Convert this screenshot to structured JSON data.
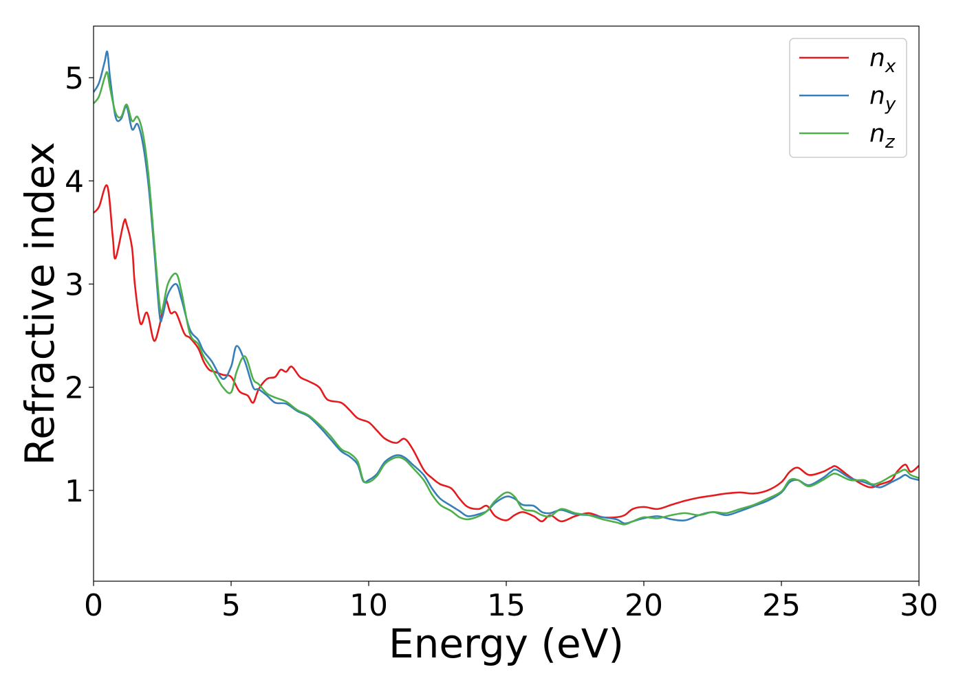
{
  "chart_data": {
    "type": "line",
    "xlabel": "Energy (eV)",
    "ylabel": "Refractive index",
    "xlim": [
      0,
      30
    ],
    "ylim": [
      0.12,
      5.5
    ],
    "xticks": [
      0,
      5,
      10,
      15,
      20,
      25,
      30
    ],
    "yticks": [
      1,
      2,
      3,
      4,
      5
    ],
    "grid": false,
    "legend_position": "top-right",
    "series": [
      {
        "name": "n_x",
        "label_base": "n",
        "label_sub": "x",
        "color": "#e41a1c",
        "x": [
          0,
          0.2,
          0.5,
          0.7,
          0.8,
          1.1,
          1.2,
          1.4,
          1.5,
          1.7,
          1.9,
          2.0,
          2.2,
          2.4,
          2.6,
          2.8,
          3.0,
          3.3,
          3.5,
          3.8,
          4.0,
          4.2,
          4.4,
          4.7,
          5.0,
          5.3,
          5.6,
          5.8,
          6.0,
          6.3,
          6.6,
          6.8,
          7.0,
          7.2,
          7.5,
          7.8,
          8.2,
          8.5,
          9.0,
          9.3,
          9.6,
          10.0,
          10.3,
          10.6,
          11.0,
          11.3,
          11.6,
          12.0,
          12.3,
          12.6,
          13.0,
          13.3,
          13.6,
          14.0,
          14.3,
          14.6,
          15.0,
          15.3,
          15.6,
          16.0,
          16.3,
          16.6,
          17.0,
          17.5,
          18.0,
          18.5,
          19.0,
          19.3,
          19.6,
          20.0,
          20.5,
          21.0,
          21.5,
          22.0,
          22.5,
          23.0,
          23.5,
          24.0,
          24.5,
          25.0,
          25.3,
          25.6,
          26.0,
          26.5,
          26.8,
          27.0,
          27.5,
          28.0,
          28.3,
          28.6,
          29.0,
          29.2,
          29.5,
          29.7,
          30.0
        ],
        "values": [
          3.69,
          3.75,
          3.95,
          3.45,
          3.25,
          3.6,
          3.58,
          3.35,
          3.0,
          2.62,
          2.72,
          2.68,
          2.45,
          2.6,
          2.85,
          2.72,
          2.72,
          2.52,
          2.48,
          2.38,
          2.25,
          2.17,
          2.15,
          2.12,
          2.1,
          1.96,
          1.92,
          1.85,
          1.98,
          2.08,
          2.1,
          2.17,
          2.15,
          2.2,
          2.1,
          2.06,
          2.0,
          1.88,
          1.85,
          1.78,
          1.7,
          1.66,
          1.58,
          1.5,
          1.46,
          1.5,
          1.4,
          1.2,
          1.12,
          1.06,
          1.02,
          0.92,
          0.84,
          0.82,
          0.85,
          0.75,
          0.71,
          0.76,
          0.79,
          0.75,
          0.7,
          0.76,
          0.7,
          0.75,
          0.78,
          0.74,
          0.74,
          0.76,
          0.82,
          0.84,
          0.82,
          0.86,
          0.9,
          0.93,
          0.95,
          0.97,
          0.98,
          0.97,
          1.0,
          1.08,
          1.18,
          1.22,
          1.15,
          1.18,
          1.22,
          1.23,
          1.13,
          1.05,
          1.03,
          1.06,
          1.1,
          1.18,
          1.25,
          1.18,
          1.24
        ]
      },
      {
        "name": "n_y",
        "label_base": "n",
        "label_sub": "y",
        "color": "#377eb8",
        "x": [
          0,
          0.2,
          0.4,
          0.5,
          0.6,
          0.8,
          1.0,
          1.2,
          1.4,
          1.6,
          1.8,
          2.0,
          2.2,
          2.4,
          2.5,
          2.7,
          3.0,
          3.2,
          3.5,
          3.8,
          4.0,
          4.3,
          4.7,
          5.0,
          5.2,
          5.5,
          5.8,
          6.0,
          6.3,
          6.6,
          7.0,
          7.4,
          7.8,
          8.2,
          8.6,
          9.0,
          9.3,
          9.6,
          9.8,
          10.0,
          10.3,
          10.6,
          11.0,
          11.3,
          11.6,
          12.0,
          12.3,
          12.6,
          13.0,
          13.3,
          13.6,
          14.0,
          14.3,
          14.6,
          15.0,
          15.3,
          15.6,
          16.0,
          16.3,
          16.6,
          17.0,
          17.5,
          18.0,
          18.5,
          19.0,
          19.3,
          19.6,
          20.0,
          20.5,
          21.0,
          21.5,
          22.0,
          22.5,
          23.0,
          23.5,
          24.0,
          24.5,
          25.0,
          25.3,
          25.6,
          26.0,
          26.5,
          26.8,
          27.0,
          27.5,
          28.0,
          28.3,
          28.6,
          29.0,
          29.3,
          29.5,
          29.7,
          30.0
        ],
        "values": [
          4.86,
          4.95,
          5.15,
          5.25,
          5.0,
          4.62,
          4.6,
          4.72,
          4.5,
          4.55,
          4.35,
          3.95,
          3.35,
          2.7,
          2.68,
          2.9,
          3.0,
          2.85,
          2.56,
          2.46,
          2.35,
          2.25,
          2.08,
          2.2,
          2.4,
          2.25,
          2.0,
          1.98,
          1.92,
          1.85,
          1.84,
          1.77,
          1.72,
          1.62,
          1.5,
          1.38,
          1.33,
          1.25,
          1.09,
          1.1,
          1.16,
          1.28,
          1.34,
          1.32,
          1.25,
          1.15,
          1.02,
          0.92,
          0.85,
          0.8,
          0.75,
          0.77,
          0.8,
          0.88,
          0.94,
          0.92,
          0.86,
          0.85,
          0.79,
          0.78,
          0.81,
          0.77,
          0.76,
          0.74,
          0.72,
          0.68,
          0.7,
          0.73,
          0.75,
          0.72,
          0.71,
          0.76,
          0.79,
          0.76,
          0.8,
          0.85,
          0.9,
          0.98,
          1.08,
          1.1,
          1.05,
          1.12,
          1.18,
          1.2,
          1.12,
          1.08,
          1.05,
          1.03,
          1.08,
          1.12,
          1.15,
          1.12,
          1.1
        ]
      },
      {
        "name": "n_z",
        "label_base": "n",
        "label_sub": "z",
        "color": "#4daf4a",
        "x": [
          0,
          0.2,
          0.4,
          0.5,
          0.6,
          0.8,
          1.0,
          1.2,
          1.4,
          1.6,
          1.8,
          2.0,
          2.2,
          2.4,
          2.5,
          2.7,
          3.0,
          3.2,
          3.5,
          3.8,
          4.0,
          4.3,
          4.7,
          5.0,
          5.2,
          5.5,
          5.8,
          6.0,
          6.3,
          6.6,
          7.0,
          7.4,
          7.8,
          8.2,
          8.6,
          9.0,
          9.3,
          9.6,
          9.8,
          10.0,
          10.3,
          10.6,
          11.0,
          11.3,
          11.6,
          12.0,
          12.3,
          12.6,
          13.0,
          13.3,
          13.6,
          14.0,
          14.3,
          14.6,
          15.0,
          15.3,
          15.6,
          16.0,
          16.3,
          16.6,
          17.0,
          17.5,
          18.0,
          18.5,
          19.0,
          19.3,
          19.6,
          20.0,
          20.5,
          21.0,
          21.5,
          22.0,
          22.5,
          23.0,
          23.5,
          24.0,
          24.5,
          25.0,
          25.3,
          25.6,
          26.0,
          26.5,
          26.8,
          27.0,
          27.5,
          28.0,
          28.3,
          28.6,
          29.0,
          29.3,
          29.5,
          29.7,
          30.0
        ],
        "values": [
          4.75,
          4.82,
          5.0,
          5.05,
          4.9,
          4.66,
          4.62,
          4.74,
          4.58,
          4.62,
          4.45,
          4.05,
          3.42,
          2.8,
          2.75,
          3.0,
          3.1,
          2.92,
          2.52,
          2.42,
          2.3,
          2.18,
          2.0,
          1.95,
          2.15,
          2.3,
          2.08,
          2.03,
          1.94,
          1.9,
          1.86,
          1.78,
          1.73,
          1.64,
          1.53,
          1.4,
          1.36,
          1.28,
          1.1,
          1.08,
          1.14,
          1.26,
          1.32,
          1.3,
          1.22,
          1.1,
          0.96,
          0.86,
          0.8,
          0.74,
          0.72,
          0.75,
          0.8,
          0.9,
          0.98,
          0.94,
          0.82,
          0.8,
          0.76,
          0.75,
          0.82,
          0.78,
          0.76,
          0.72,
          0.69,
          0.67,
          0.7,
          0.74,
          0.73,
          0.76,
          0.78,
          0.76,
          0.79,
          0.78,
          0.82,
          0.86,
          0.92,
          0.99,
          1.1,
          1.1,
          1.04,
          1.1,
          1.15,
          1.16,
          1.1,
          1.1,
          1.06,
          1.08,
          1.14,
          1.18,
          1.2,
          1.15,
          1.12
        ]
      }
    ]
  }
}
